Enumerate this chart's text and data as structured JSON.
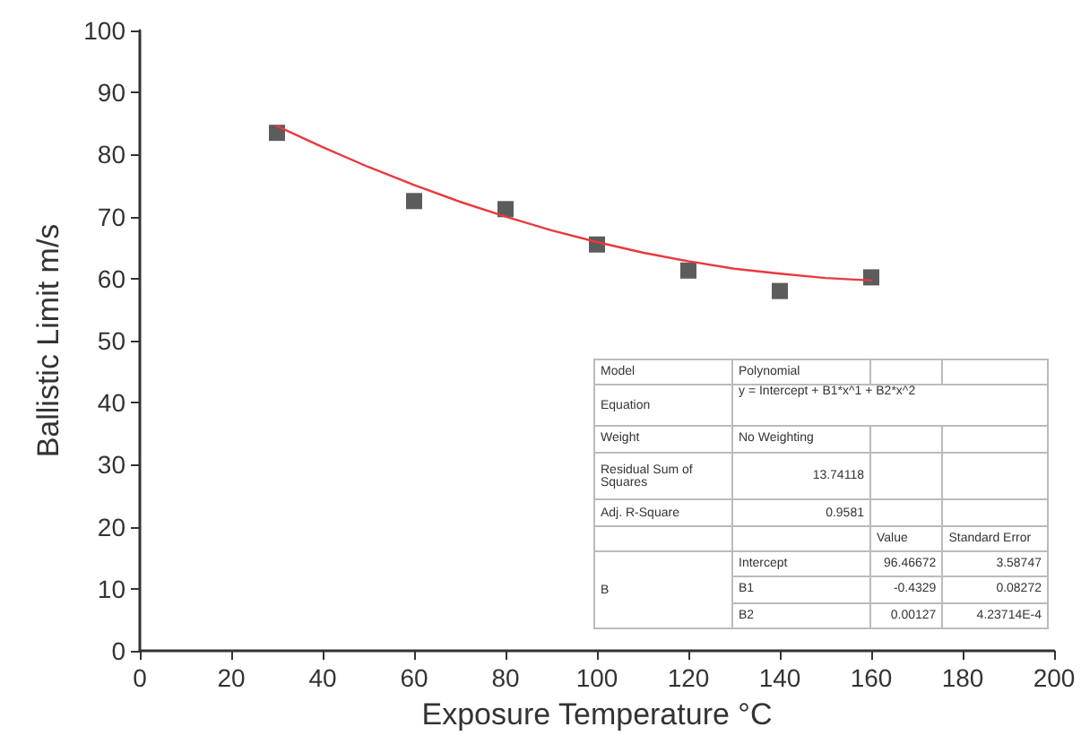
{
  "chart_data": {
    "type": "scatter",
    "xlabel": "Exposure Temperature °C",
    "ylabel": "Ballistic Limit m/s",
    "xlim": [
      0,
      200
    ],
    "xticks": [
      0,
      20,
      40,
      60,
      80,
      100,
      120,
      140,
      160,
      180,
      200
    ],
    "ylim": [
      0,
      100
    ],
    "yticks": [
      0,
      10,
      20,
      30,
      40,
      50,
      60,
      70,
      80,
      90,
      100
    ],
    "grid": false,
    "marker": "square",
    "series": [
      {
        "color": "#333333",
        "x": [
          30,
          60,
          80,
          100,
          120,
          140,
          160
        ],
        "values": [
          83.5,
          72.5,
          71.2,
          65.5,
          61.3,
          58,
          60.2
        ]
      },
      {
        "type": "line",
        "color": "#e8393f",
        "marker": "none",
        "line_style": "solid",
        "x": [
          30,
          40,
          50,
          60,
          70,
          80,
          90,
          100,
          110,
          120,
          130,
          140,
          150,
          160
        ],
        "values": [
          84.6,
          81.2,
          78.0,
          75.1,
          72.4,
          70.0,
          67.8,
          65.9,
          64.2,
          62.8,
          61.6,
          60.8,
          60.1,
          59.7
        ]
      }
    ],
    "annotations": [
      "Model",
      "Polynomial",
      "Equation",
      "y = Intercept + B1*x^1 + B2*x^2",
      "Weight",
      "No Weighting",
      "Residual Sum of Squares",
      "13.74118",
      "Adj. R-Square",
      "0.9581",
      "Value",
      "Standard Error",
      "B",
      "Intercept",
      "96.46672",
      "3.58747",
      "B1",
      "-0.4329",
      "0.08272",
      "B2",
      "0.00127",
      "4.23714E-4"
    ]
  }
}
